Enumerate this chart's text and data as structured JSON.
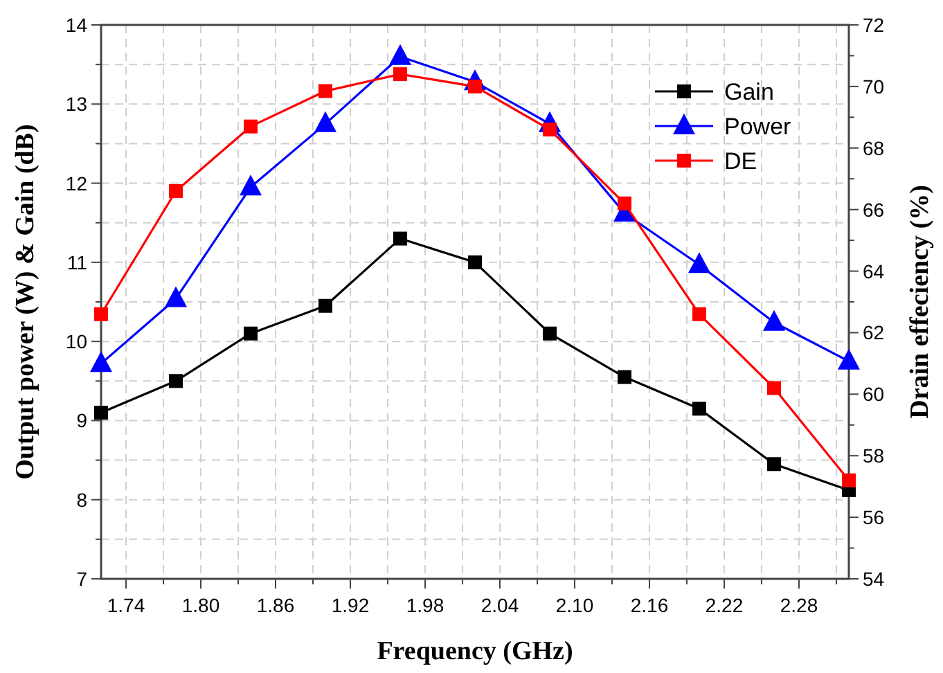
{
  "chart_data": {
    "type": "line",
    "xlabel": "Frequency (GHz)",
    "ylabel": "Output power (W) & Gain (dB)",
    "y2label": "Drain effeciency (%)",
    "x": [
      1.72,
      1.78,
      1.84,
      1.9,
      1.96,
      2.02,
      2.08,
      2.14,
      2.2,
      2.26,
      2.32
    ],
    "series": [
      {
        "name": "Gain",
        "color": "#000000",
        "marker": "square",
        "values": [
          9.1,
          9.5,
          10.1,
          10.45,
          11.3,
          11.0,
          10.1,
          9.55,
          9.15,
          8.45,
          8.12
        ]
      },
      {
        "name": "Power",
        "color": "#0000ff",
        "marker": "triangle",
        "values": [
          9.72,
          10.54,
          11.95,
          12.75,
          13.6,
          13.28,
          12.75,
          11.62,
          10.97,
          10.24,
          9.75
        ]
      },
      {
        "name": "DE",
        "color": "#ff0000",
        "marker": "square",
        "axis": "y2",
        "values": [
          62.6,
          66.6,
          68.7,
          69.85,
          70.4,
          70.0,
          68.6,
          66.2,
          62.6,
          60.2,
          57.2
        ]
      }
    ],
    "xlim": [
      1.72,
      2.32
    ],
    "xticks": [
      {
        "value": 1.74,
        "label": "1.74"
      },
      {
        "value": 1.77,
        "label": null
      },
      {
        "value": 1.8,
        "label": "1.80"
      },
      {
        "value": 1.83,
        "label": null
      },
      {
        "value": 1.86,
        "label": "1.86"
      },
      {
        "value": 1.89,
        "label": null
      },
      {
        "value": 1.92,
        "label": "1.92"
      },
      {
        "value": 1.95,
        "label": null
      },
      {
        "value": 1.98,
        "label": "1.98"
      },
      {
        "value": 2.01,
        "label": null
      },
      {
        "value": 2.04,
        "label": "2.04"
      },
      {
        "value": 2.07,
        "label": null
      },
      {
        "value": 2.1,
        "label": "2.10"
      },
      {
        "value": 2.13,
        "label": null
      },
      {
        "value": 2.16,
        "label": "2.16"
      },
      {
        "value": 2.19,
        "label": null
      },
      {
        "value": 2.22,
        "label": "2.22"
      },
      {
        "value": 2.25,
        "label": null
      },
      {
        "value": 2.28,
        "label": "2.28"
      },
      {
        "value": 2.31,
        "label": null
      }
    ],
    "ylim": [
      7,
      14
    ],
    "yticks": [
      7,
      {
        "value": 7.5,
        "label": null
      },
      8,
      {
        "value": 8.5,
        "label": null
      },
      9,
      {
        "value": 9.5,
        "label": null
      },
      10,
      {
        "value": 10.5,
        "label": null
      },
      11,
      {
        "value": 11.5,
        "label": null
      },
      12,
      {
        "value": 12.5,
        "label": null
      },
      13,
      {
        "value": 13.5,
        "label": null
      },
      14
    ],
    "y2lim": [
      54,
      72
    ],
    "y2ticks": [
      54,
      {
        "value": 55,
        "label": null
      },
      56,
      {
        "value": 57,
        "label": null
      },
      58,
      {
        "value": 59,
        "label": null
      },
      60,
      {
        "value": 61,
        "label": null
      },
      62,
      {
        "value": 63,
        "label": null
      },
      64,
      {
        "value": 65,
        "label": null
      },
      66,
      {
        "value": 67,
        "label": null
      },
      68,
      {
        "value": 69,
        "label": null
      },
      70,
      {
        "value": 71,
        "label": null
      },
      72
    ],
    "grid": true,
    "legend": "top right",
    "line_style": "solid"
  }
}
